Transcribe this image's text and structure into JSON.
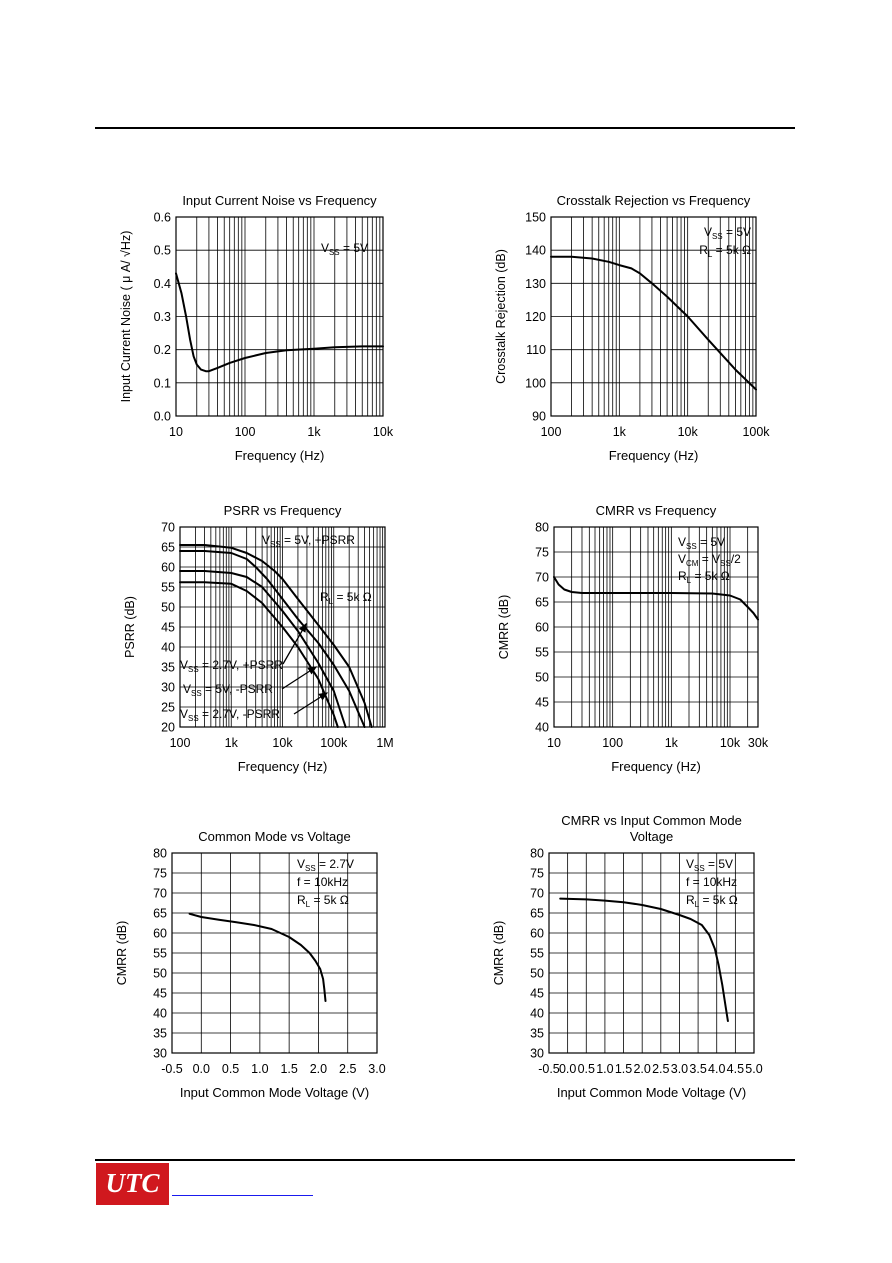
{
  "chart_data": [
    {
      "id": "c1",
      "type": "line",
      "title": "Input Current Noise vs Frequency",
      "xlabel": "Frequency (Hz)",
      "ylabel": "Input Current Noise ( μ A/ √Hz)",
      "xscale": "log",
      "xlim": [
        10,
        10000
      ],
      "ylim": [
        0,
        0.6
      ],
      "xticks": [
        10,
        100,
        1000,
        10000
      ],
      "xtick_labels": [
        "10",
        "100",
        "1k",
        "10k"
      ],
      "yticks": [
        0,
        0.1,
        0.2,
        0.3,
        0.4,
        0.5,
        0.6
      ],
      "ytick_labels": [
        "0.0",
        "0.1",
        "0.2",
        "0.3",
        "0.4",
        "0.5",
        "0.6"
      ],
      "grid": true,
      "annotations": [
        {
          "main": "V",
          "sub": "SS",
          "rest": " = 5V"
        }
      ],
      "series": [
        {
          "x": [
            10,
            12,
            14,
            16,
            18,
            20,
            23,
            27,
            30,
            40,
            60,
            100,
            200,
            400,
            1000,
            2000,
            5000,
            10000
          ],
          "y": [
            0.43,
            0.37,
            0.3,
            0.23,
            0.18,
            0.155,
            0.14,
            0.135,
            0.135,
            0.145,
            0.16,
            0.175,
            0.19,
            0.198,
            0.203,
            0.207,
            0.21,
            0.21
          ]
        }
      ]
    },
    {
      "id": "c2",
      "type": "line",
      "title": "Crosstalk Rejection vs Frequency",
      "xlabel": "Frequency (Hz)",
      "ylabel": "Crosstalk Rejection (dB)",
      "xscale": "log",
      "xlim": [
        100,
        100000
      ],
      "ylim": [
        90,
        150
      ],
      "xticks": [
        100,
        1000,
        10000,
        100000
      ],
      "xtick_labels": [
        "100",
        "1k",
        "10k",
        "100k"
      ],
      "yticks": [
        90,
        100,
        110,
        120,
        130,
        140,
        150
      ],
      "ytick_labels": [
        "90",
        "100",
        "110",
        "120",
        "130",
        "140",
        "150"
      ],
      "grid": true,
      "annotations": [
        {
          "main": "V",
          "sub": "SS",
          "rest": " = 5V"
        },
        {
          "main": "R",
          "sub": "L",
          "rest": " = 5k Ω"
        }
      ],
      "series": [
        {
          "x": [
            100,
            200,
            400,
            700,
            1000,
            1500,
            2000,
            3000,
            5000,
            10000,
            20000,
            50000,
            100000
          ],
          "y": [
            138,
            138,
            137.5,
            136.5,
            135.5,
            134.5,
            133,
            130,
            126,
            120,
            113,
            104,
            98
          ]
        }
      ]
    },
    {
      "id": "c3",
      "type": "line",
      "title": "PSRR vs Frequency",
      "xlabel": "Frequency (Hz)",
      "ylabel": "PSRR (dB)",
      "xscale": "log",
      "xlim": [
        100,
        1000000
      ],
      "ylim": [
        20,
        70
      ],
      "xticks": [
        100,
        1000,
        10000,
        100000,
        1000000
      ],
      "xtick_labels": [
        "100",
        "1k",
        "10k",
        "100k",
        "1M"
      ],
      "yticks": [
        20,
        25,
        30,
        35,
        40,
        45,
        50,
        55,
        60,
        65,
        70
      ],
      "ytick_labels": [
        "20",
        "25",
        "30",
        "35",
        "40",
        "45",
        "50",
        "55",
        "60",
        "65",
        "70"
      ],
      "grid": true,
      "annotations": [
        {
          "main": "V",
          "sub": "SS",
          "rest": " = 5V, +PSRR"
        },
        {
          "main": "R",
          "sub": "L",
          "rest": " = 5k Ω"
        },
        {
          "main": "V",
          "sub": "SS",
          "rest": " = 2.7V, +PSRR"
        },
        {
          "main": "V",
          "sub": "SS",
          "rest": " = 5V, -PSRR"
        },
        {
          "main": "V",
          "sub": "SS",
          "rest": " = 2.7V, -PSRR"
        }
      ],
      "series": [
        {
          "name": "VSS = 5V, +PSRR",
          "x": [
            100,
            300,
            1000,
            2000,
            4000,
            7000,
            10000,
            20000,
            50000,
            100000,
            200000,
            400000,
            550000
          ],
          "y": [
            65.5,
            65.5,
            64.8,
            63.5,
            61.5,
            59,
            57,
            52,
            45.5,
            40.5,
            35,
            26,
            20
          ]
        },
        {
          "name": "VSS = 2.7V, +PSRR",
          "x": [
            100,
            300,
            1000,
            2000,
            3000,
            5000,
            10000,
            20000,
            50000,
            100000,
            200000,
            400000
          ],
          "y": [
            64,
            64,
            63.5,
            62,
            60,
            57,
            52,
            47,
            41,
            35.5,
            29,
            20
          ]
        },
        {
          "name": "VSS = 5V, -PSRR",
          "x": [
            100,
            300,
            1000,
            2000,
            4000,
            10000,
            20000,
            50000,
            100000,
            170000
          ],
          "y": [
            59,
            59,
            58.5,
            57.5,
            55,
            49,
            44,
            36,
            29,
            20
          ]
        },
        {
          "name": "VSS = 2.7V, -PSRR",
          "x": [
            100,
            300,
            1000,
            2000,
            4000,
            10000,
            20000,
            50000,
            100000,
            120000
          ],
          "y": [
            56.2,
            56.2,
            55.8,
            54,
            51,
            45,
            40,
            32,
            23,
            20
          ]
        }
      ]
    },
    {
      "id": "c4",
      "type": "line",
      "title": "CMRR vs Frequency",
      "xlabel": "Frequency (Hz)",
      "ylabel": "CMRR (dB)",
      "xscale": "log",
      "xlim": [
        10,
        30000
      ],
      "ylim": [
        40,
        80
      ],
      "xticks": [
        10,
        100,
        1000,
        10000,
        30000
      ],
      "xtick_labels": [
        "10",
        "100",
        "1k",
        "10k",
        "30k"
      ],
      "yticks": [
        40,
        45,
        50,
        55,
        60,
        65,
        70,
        75,
        80
      ],
      "ytick_labels": [
        "40",
        "45",
        "50",
        "55",
        "60",
        "65",
        "70",
        "75",
        "80"
      ],
      "grid": true,
      "annotations": [
        {
          "main": "V",
          "sub": "SS",
          "rest": " = 5V"
        },
        {
          "main": "V",
          "sub": "CM",
          "rest": " = V",
          "sub2": "SS",
          "rest2": "/2"
        },
        {
          "main": "R",
          "sub": "L",
          "rest": " = 5k Ω"
        }
      ],
      "series": [
        {
          "x": [
            10,
            12,
            15,
            20,
            30,
            50,
            100,
            1000,
            5000,
            10000,
            15000,
            20000,
            25000,
            30000
          ],
          "y": [
            70,
            68.5,
            67.5,
            67,
            66.8,
            66.8,
            66.8,
            66.8,
            66.7,
            66.3,
            65.5,
            64,
            62.8,
            61.5
          ]
        }
      ]
    },
    {
      "id": "c5",
      "type": "line",
      "title": "Common Mode vs Voltage",
      "xlabel": "Input Common Mode Voltage (V)",
      "ylabel": "CMRR (dB)",
      "xscale": "linear",
      "xlim": [
        -0.5,
        3.0
      ],
      "ylim": [
        30,
        80
      ],
      "xticks": [
        -0.5,
        0,
        0.5,
        1.0,
        1.5,
        2.0,
        2.5,
        3.0
      ],
      "xtick_labels": [
        "-0.5",
        "0.0",
        "0.5",
        "1.0",
        "1.5",
        "2.0",
        "2.5",
        "3.0"
      ],
      "yticks": [
        30,
        35,
        40,
        45,
        50,
        55,
        60,
        65,
        70,
        75,
        80
      ],
      "ytick_labels": [
        "30",
        "35",
        "40",
        "45",
        "50",
        "55",
        "60",
        "65",
        "70",
        "75",
        "80"
      ],
      "grid": true,
      "annotations": [
        {
          "main": "V",
          "sub": "SS",
          "rest": " = 2.7V"
        },
        {
          "main": "f",
          "sub": "",
          "rest": " = 10kHz"
        },
        {
          "main": "R",
          "sub": "L",
          "rest": " = 5k Ω"
        }
      ],
      "series": [
        {
          "x": [
            -0.2,
            0,
            0.3,
            0.6,
            0.9,
            1.2,
            1.5,
            1.7,
            1.85,
            1.95,
            2.03,
            2.08,
            2.1,
            2.12
          ],
          "y": [
            64.8,
            64,
            63.3,
            62.7,
            62,
            61,
            59,
            57,
            55,
            53,
            51,
            48.5,
            46,
            43
          ]
        }
      ]
    },
    {
      "id": "c6",
      "type": "line",
      "title": "CMRR vs Input Common Mode Voltage",
      "title_lines": [
        "CMRR vs Input Common Mode",
        "Voltage"
      ],
      "xlabel": "Input Common Mode Voltage (V)",
      "ylabel": "CMRR (dB)",
      "xscale": "linear",
      "xlim": [
        -0.5,
        5.0
      ],
      "ylim": [
        30,
        80
      ],
      "xticks": [
        -0.5,
        0,
        0.5,
        1.0,
        1.5,
        2.0,
        2.5,
        3.0,
        3.5,
        4.0,
        4.5,
        5.0
      ],
      "xtick_labels": [
        "-0.5",
        "0.0",
        "0.5",
        "1.0",
        "1.5",
        "2.0",
        "2.5",
        "3.0",
        "3.5",
        "4.0",
        "4.5",
        "5.0"
      ],
      "yticks": [
        30,
        35,
        40,
        45,
        50,
        55,
        60,
        65,
        70,
        75,
        80
      ],
      "ytick_labels": [
        "30",
        "35",
        "40",
        "45",
        "50",
        "55",
        "60",
        "65",
        "70",
        "75",
        "80"
      ],
      "grid": true,
      "annotations": [
        {
          "main": "V",
          "sub": "SS",
          "rest": " = 5V"
        },
        {
          "main": "f",
          "sub": "",
          "rest": " = 10kHz"
        },
        {
          "main": "R",
          "sub": "L",
          "rest": " = 5k Ω"
        }
      ],
      "series": [
        {
          "x": [
            -0.2,
            0.5,
            1.0,
            1.5,
            2.0,
            2.5,
            3.0,
            3.3,
            3.6,
            3.8,
            3.95,
            4.05,
            4.15,
            4.25,
            4.3
          ],
          "y": [
            68.6,
            68.4,
            68.1,
            67.7,
            67,
            66,
            64.5,
            63.5,
            62,
            59.5,
            56,
            52,
            47,
            41,
            38
          ]
        }
      ]
    }
  ],
  "footer": {
    "logo_text": "UTC"
  }
}
